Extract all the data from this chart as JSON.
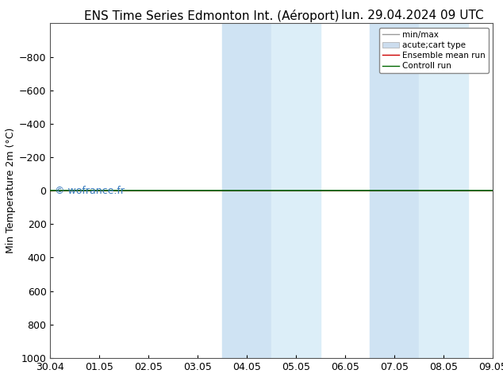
{
  "title_left": "ENS Time Series Edmonton Int. (Aéroport)",
  "title_right": "lun. 29.04.2024 09 UTC",
  "ylabel": "Min Temperature 2m (°C)",
  "ylim_top": -1000,
  "ylim_bottom": 1000,
  "yticks": [
    -800,
    -600,
    -400,
    -200,
    0,
    200,
    400,
    600,
    800,
    1000
  ],
  "x_start": 0,
  "x_end": 9,
  "xtick_labels": [
    "30.04",
    "01.05",
    "02.05",
    "03.05",
    "04.05",
    "05.05",
    "06.05",
    "07.05",
    "08.05",
    "09.05"
  ],
  "xtick_positions": [
    0,
    1,
    2,
    3,
    4,
    5,
    6,
    7,
    8,
    9
  ],
  "shade_regions": [
    [
      3.5,
      4.5
    ],
    [
      4.5,
      5.5
    ],
    [
      6.5,
      7.5
    ],
    [
      7.5,
      8.5
    ]
  ],
  "shade_colors": [
    "#cfe3f3",
    "#dceef8",
    "#cfe3f3",
    "#dceef8"
  ],
  "green_line_y": 0,
  "green_line_color": "#006600",
  "red_line_y": 0,
  "red_line_color": "#cc0000",
  "watermark": "© wofrance.fr",
  "watermark_color": "#3377bb",
  "legend_labels": [
    "min/max",
    "acute;cart type",
    "Ensemble mean run",
    "Controll run"
  ],
  "legend_minmax_color": "#999999",
  "legend_acute_color": "#ccddee",
  "legend_ens_color": "#cc0000",
  "legend_ctrl_color": "#006600",
  "background_color": "#ffffff",
  "spine_color": "#555555",
  "title_fontsize": 11,
  "ylabel_fontsize": 9,
  "tick_fontsize": 9,
  "legend_fontsize": 7.5
}
